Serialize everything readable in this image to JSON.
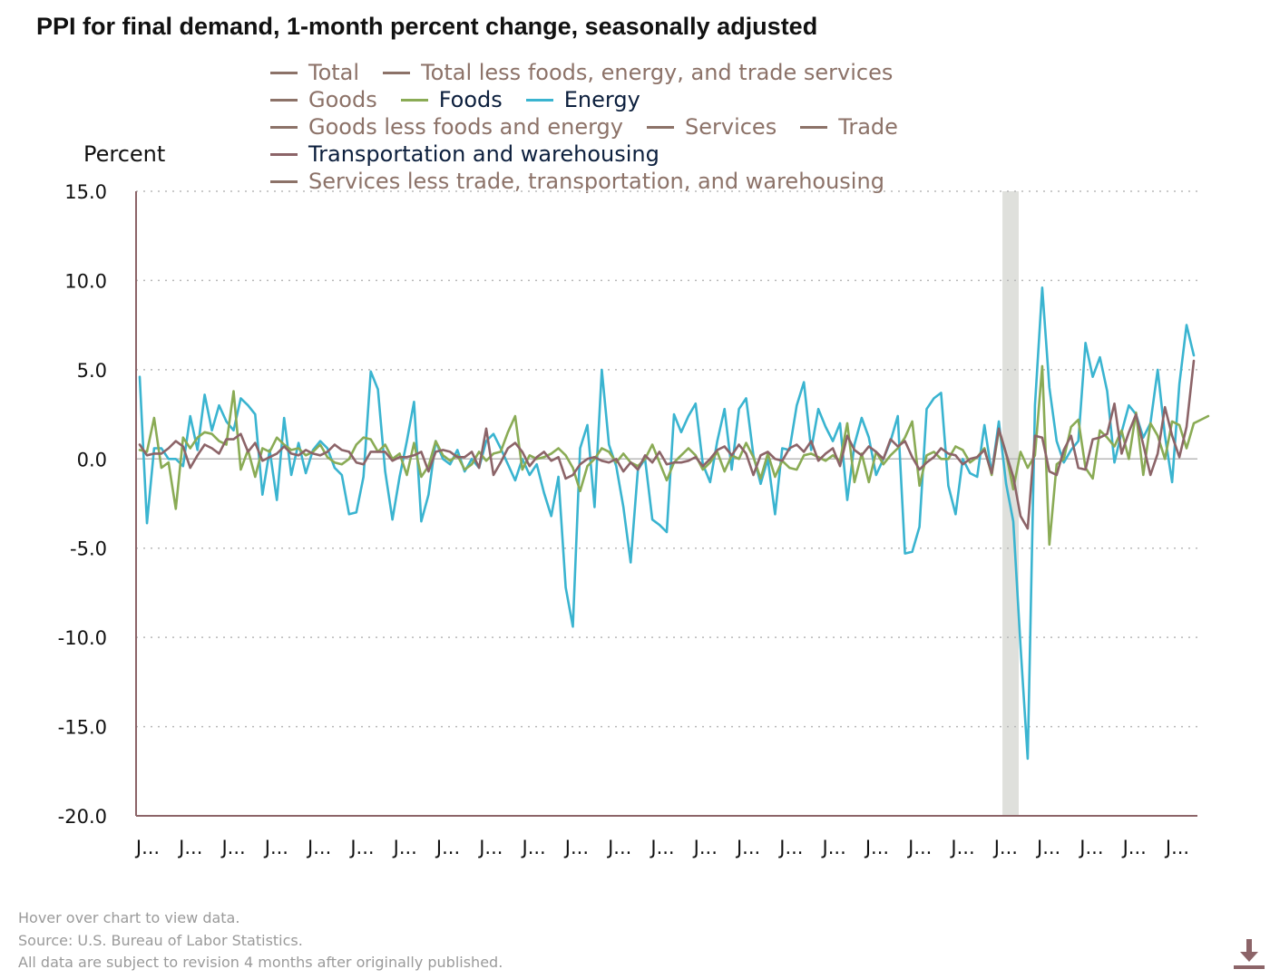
{
  "title": "PPI for final demand, 1-month percent change, seasonally adjusted",
  "legend_rows": [
    [
      {
        "label": "Total",
        "color": "#8c7268",
        "active": false
      },
      {
        "label": "Total less foods, energy, and trade services",
        "color": "#8c7268",
        "active": false
      }
    ],
    [
      {
        "label": "Goods",
        "color": "#8c7268",
        "active": false
      },
      {
        "label": "Foods",
        "color": "#8aab55",
        "active": true
      },
      {
        "label": "Energy",
        "color": "#3ab4d0",
        "active": true
      }
    ],
    [
      {
        "label": "Goods less foods and energy",
        "color": "#8c7268",
        "active": false
      },
      {
        "label": "Services",
        "color": "#8c7268",
        "active": false
      },
      {
        "label": "Trade",
        "color": "#8c7268",
        "active": false
      }
    ],
    [
      {
        "label": "Transportation and warehousing",
        "color": "#8c6468",
        "active": true
      }
    ],
    [
      {
        "label": "Services less trade, transportation, and warehousing",
        "color": "#8c7268",
        "active": false
      }
    ]
  ],
  "footer": {
    "line1": "Hover over chart to view data.",
    "line2": "Source: U.S. Bureau of Labor Statistics.",
    "line3": "All data are subject to revision 4 months after originally published."
  },
  "download_icon": "download-icon",
  "chart_data": {
    "type": "line",
    "title": "PPI for final demand, 1-month percent change, seasonally adjusted",
    "ylabel": "Percent",
    "ylim": [
      -20.0,
      15.0
    ],
    "yticks": [
      "15.0",
      "10.0",
      "5.0",
      "0.0",
      "-5.0",
      "-10.0",
      "-15.0",
      "-20.0"
    ],
    "xtick_labels": [
      "J...",
      "J...",
      "J...",
      "J...",
      "J...",
      "J...",
      "J...",
      "J...",
      "J...",
      "J...",
      "J...",
      "J...",
      "J...",
      "J...",
      "J...",
      "J...",
      "J...",
      "J...",
      "J...",
      "J...",
      "J...",
      "J...",
      "J...",
      "J...",
      "J..."
    ],
    "grid": "horizontal dotted",
    "recession_band": {
      "start_index": 120,
      "end_index": 122
    },
    "series": [
      {
        "name": "Energy",
        "color": "#3ab4d0",
        "values": [
          4.6,
          -3.6,
          0.6,
          0.6,
          0.0,
          0.0,
          -0.4,
          2.4,
          0.5,
          3.6,
          1.6,
          3.0,
          2.1,
          1.6,
          3.4,
          3.0,
          2.5,
          -2.0,
          0.5,
          -2.3,
          2.3,
          -0.9,
          0.9,
          -0.8,
          0.5,
          1.0,
          0.6,
          -0.5,
          -0.9,
          -3.1,
          -3.0,
          -1.0,
          4.9,
          3.9,
          -0.7,
          -3.4,
          -1.0,
          1.0,
          3.2,
          -3.5,
          -2.0,
          1.0,
          0.0,
          -0.3,
          0.5,
          -0.7,
          0.0,
          -0.5,
          1.0,
          1.4,
          0.6,
          -0.3,
          -1.2,
          0.0,
          -0.9,
          -0.3,
          -1.9,
          -3.2,
          -1.0,
          -7.2,
          -9.4,
          0.6,
          1.9,
          -2.7,
          5.0,
          0.8,
          -0.4,
          -2.7,
          -5.8,
          -0.6,
          0.0,
          -3.4,
          -3.7,
          -4.1,
          2.5,
          1.5,
          2.4,
          3.1,
          -0.3,
          -1.3,
          1.0,
          2.8,
          -0.6,
          2.8,
          3.4,
          0.2,
          -1.4,
          0.0,
          -3.1,
          0.6,
          0.5,
          3.0,
          4.3,
          0.5,
          2.8,
          1.8,
          1.0,
          2.0,
          -2.3,
          0.8,
          2.3,
          1.2,
          -0.9,
          0.0,
          1.0,
          2.4,
          -5.3,
          -5.2,
          -3.8,
          2.8,
          3.4,
          3.7,
          -1.5,
          -3.1,
          0.0,
          -0.8,
          -1.0,
          1.9,
          -0.8,
          2.1,
          -1.4,
          -3.5,
          -10.5,
          -16.8,
          3.0,
          9.6,
          4.0,
          1.0,
          -0.2,
          0.5,
          1.0,
          6.5,
          4.6,
          5.7,
          3.8,
          -0.2,
          1.5,
          3.0,
          2.5,
          1.2,
          2.0,
          5.0,
          1.3,
          -1.3,
          4.2,
          7.5,
          5.8
        ]
      },
      {
        "name": "Foods",
        "color": "#8aab55",
        "values": [
          0.5,
          0.4,
          2.3,
          -0.5,
          -0.2,
          -2.8,
          1.2,
          0.6,
          1.2,
          1.5,
          1.4,
          1.0,
          0.8,
          3.8,
          -0.6,
          0.5,
          -1.0,
          0.6,
          0.4,
          1.2,
          0.8,
          0.5,
          0.6,
          0.2,
          0.4,
          0.8,
          0.1,
          -0.2,
          -0.3,
          0.0,
          0.8,
          1.2,
          1.1,
          0.4,
          0.8,
          0.0,
          0.3,
          -0.9,
          0.9,
          -1.0,
          -0.4,
          1.0,
          0.2,
          -0.1,
          0.2,
          -0.6,
          -0.3,
          0.4,
          -0.1,
          0.3,
          0.4,
          1.5,
          2.4,
          -0.6,
          0.2,
          0.0,
          0.1,
          0.3,
          0.6,
          0.2,
          -0.5,
          -1.8,
          -0.4,
          0.0,
          0.6,
          0.4,
          -0.2,
          0.3,
          -0.2,
          -0.4,
          0.0,
          0.8,
          -0.2,
          -1.2,
          -0.2,
          0.2,
          0.6,
          0.2,
          -0.6,
          -0.2,
          0.4,
          -0.7,
          0.2,
          0.0,
          0.9,
          0.1,
          -1.1,
          0.3,
          -1.0,
          -0.1,
          -0.5,
          -0.6,
          0.2,
          0.3,
          0.1,
          -0.1,
          0.2,
          -0.1,
          2.0,
          -1.3,
          0.3,
          -1.3,
          0.4,
          -0.3,
          0.2,
          0.6,
          1.2,
          2.1,
          -1.5,
          0.2,
          0.4,
          0.0,
          0.0,
          0.7,
          0.5,
          -0.2,
          0.1,
          0.6,
          -0.9,
          1.6,
          0.3,
          -1.7,
          0.4,
          -0.5,
          0.2,
          5.2,
          -4.8,
          -0.3,
          0.0,
          1.8,
          2.2,
          -0.5,
          -1.1,
          1.6,
          1.2,
          0.7,
          1.6,
          0.0,
          2.6,
          -0.9,
          2.0,
          1.3,
          0.0,
          2.1,
          1.9,
          0.6,
          2.0,
          2.2,
          2.4
        ]
      },
      {
        "name": "Transportation and warehousing",
        "color": "#8c6468",
        "values": [
          0.8,
          0.2,
          0.3,
          0.3,
          0.6,
          1.0,
          0.7,
          -0.5,
          0.2,
          0.8,
          0.6,
          0.3,
          1.1,
          1.1,
          1.4,
          0.4,
          0.9,
          -0.1,
          0.1,
          0.3,
          0.7,
          0.3,
          0.2,
          0.5,
          0.3,
          0.2,
          0.4,
          0.8,
          0.5,
          0.4,
          -0.2,
          -0.3,
          0.4,
          0.4,
          0.4,
          -0.1,
          0.1,
          0.1,
          0.2,
          0.4,
          -0.7,
          0.4,
          0.5,
          0.4,
          0.1,
          0.1,
          0.4,
          -0.5,
          1.7,
          -0.9,
          -0.2,
          0.6,
          0.9,
          0.4,
          -0.4,
          0.1,
          0.4,
          -0.1,
          0.1,
          -1.1,
          -0.9,
          -0.3,
          0.0,
          0.1,
          -0.1,
          -0.2,
          0.0,
          -0.7,
          -0.2,
          -0.6,
          0.2,
          -0.2,
          0.4,
          -0.3,
          -0.2,
          -0.2,
          -0.1,
          0.1,
          -0.4,
          0.0,
          0.5,
          0.7,
          0.2,
          0.8,
          0.3,
          -0.9,
          0.2,
          0.4,
          0.0,
          -0.1,
          0.6,
          0.8,
          0.4,
          1.0,
          -0.1,
          0.3,
          0.6,
          -0.4,
          1.3,
          0.5,
          0.2,
          0.7,
          0.4,
          0.0,
          1.1,
          0.7,
          1.0,
          0.1,
          -0.6,
          -0.2,
          0.1,
          0.6,
          0.3,
          0.2,
          -0.3,
          0.0,
          0.1,
          0.5,
          -0.8,
          1.7,
          0.3,
          -1.0,
          -3.2,
          -3.9,
          1.3,
          1.2,
          -0.7,
          -0.9,
          0.5,
          1.3,
          -0.5,
          -0.6,
          1.1,
          1.2,
          1.4,
          3.1,
          0.3,
          1.5,
          2.5,
          0.8,
          -0.9,
          0.3,
          2.9,
          1.3,
          0.1,
          1.8,
          5.5
        ]
      }
    ]
  }
}
